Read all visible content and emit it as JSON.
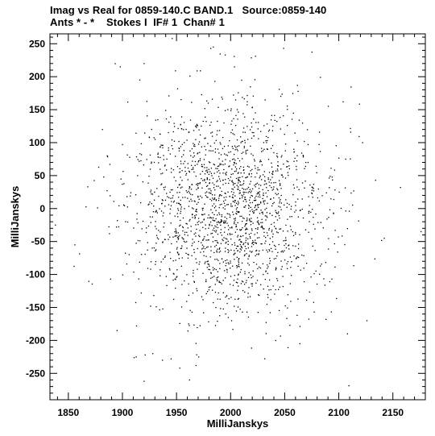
{
  "header": {
    "line1": "Imag vs Real for 0859-140.C BAND.1   Source:0859-140",
    "line2": "Ants * - *    Stokes I  IF# 1  Chan# 1"
  },
  "chart_data": {
    "type": "scatter",
    "title": "Imag vs Real for 0859-140.C BAND.1   Source:0859-140",
    "subtitle": "Ants * - *    Stokes I  IF# 1  Chan# 1",
    "xlabel": "MilliJanskys",
    "ylabel": "MilliJanskys",
    "xlim": [
      1833,
      2180
    ],
    "ylim": [
      -290,
      265
    ],
    "x_ticks": [
      1850,
      1900,
      1950,
      2000,
      2050,
      2100,
      2150
    ],
    "y_ticks": [
      -250,
      -200,
      -150,
      -100,
      -50,
      0,
      50,
      100,
      150,
      200,
      250
    ],
    "marker_color": "#000000",
    "cloud": {
      "n_points": 1900,
      "x_center": 2000,
      "y_center": 0,
      "x_sigma": 45,
      "y_sigma": 80,
      "seed": 8591400
    },
    "points": [
      [
        1838,
        -25
      ],
      [
        1856,
        -55
      ],
      [
        1868,
        33
      ],
      [
        1886,
        80
      ],
      [
        1895,
        -185
      ],
      [
        1889,
        -107
      ],
      [
        1898,
        215
      ],
      [
        1920,
        220
      ],
      [
        1921,
        -222
      ],
      [
        1920,
        -262
      ],
      [
        1928,
        -220
      ],
      [
        1937,
        -230
      ],
      [
        1949,
        209
      ],
      [
        1946,
        258
      ],
      [
        1945,
        -228
      ],
      [
        1953,
        -242
      ],
      [
        1962,
        -260
      ],
      [
        1968,
        -238
      ],
      [
        1984,
        245
      ],
      [
        1995,
        233
      ],
      [
        2023,
        231
      ],
      [
        2049,
        243
      ],
      [
        2053,
        -211
      ],
      [
        2064,
        -205
      ],
      [
        2083,
        199
      ],
      [
        2108,
        -190
      ],
      [
        2122,
        100
      ],
      [
        2126,
        -170
      ],
      [
        2134,
        43
      ],
      [
        2142,
        -45
      ],
      [
        2157,
        32
      ],
      [
        2176,
        -35
      ],
      [
        2104,
        162
      ],
      [
        2111,
        116
      ],
      [
        1888,
        -38
      ],
      [
        1877,
        1
      ],
      [
        1900,
        97
      ],
      [
        1916,
        195
      ],
      [
        1913,
        -178
      ],
      [
        1972,
        209
      ]
    ]
  }
}
